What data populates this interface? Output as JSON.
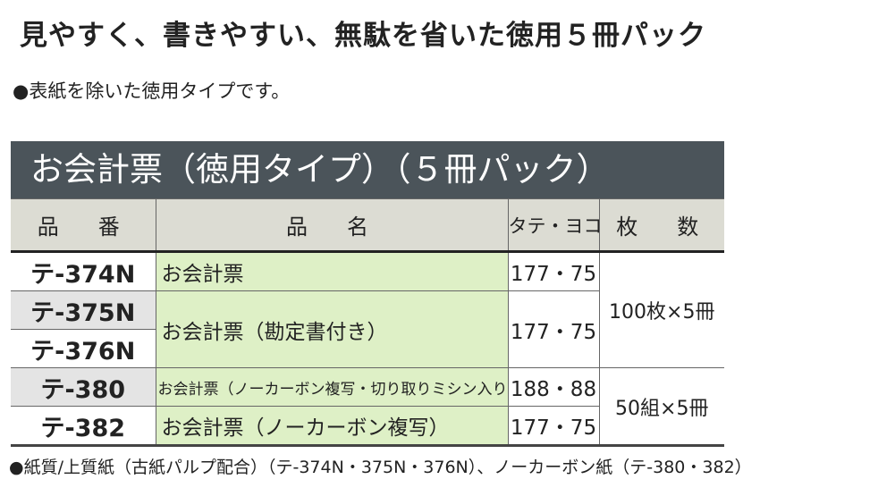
{
  "headline": "見やすく、書きやすい、無駄を省いた徳用５冊パック",
  "subtitle": "●表紙を除いた徳用タイプです。",
  "table_title": "お会計票（徳用タイプ）（５冊パック）",
  "columns": [
    "品　番",
    "品　名",
    "タテ・ヨコ",
    "枚　数"
  ],
  "rows": [
    {
      "code": "テ-374N",
      "name": "お会計票",
      "size": "177・75",
      "qty": "100枚×5冊"
    },
    {
      "code": "テ-375N",
      "name": "お会計票（勘定書付き）",
      "size": "177・75"
    },
    {
      "code": "テ-376N"
    },
    {
      "code": "テ-380",
      "name": "お会計票（ノーカーボン複写・切り取りミシン入り）",
      "size": "188・88",
      "qty": "50組×5冊"
    },
    {
      "code": "テ-382",
      "name": "お会計票（ノーカーボン複写）",
      "size": "177・75"
    }
  ],
  "footnote": "●紙質/上質紙（古紙パルプ配合）（テ-374N・375N・376N）、ノーカーボン紙（テ-380・382）",
  "colors": {
    "title_bar": "#4b545a",
    "header_bg": "#dcdcd3",
    "name_bg": "#def0c6"
  }
}
